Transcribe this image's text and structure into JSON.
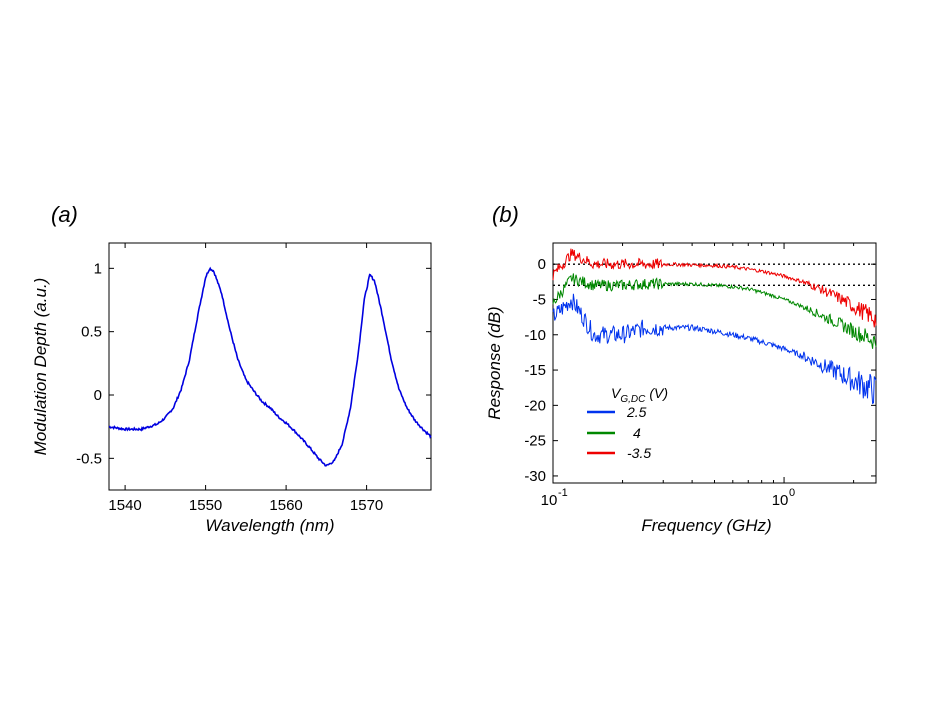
{
  "chart_data": [
    {
      "panel_label": "(a)",
      "type": "line",
      "xlabel": "Wavelength (nm)",
      "ylabel": "Modulation Depth (a.u.)",
      "xlim": [
        1538,
        1578
      ],
      "ylim": [
        -0.75,
        1.2
      ],
      "xticks": [
        1540,
        1550,
        1560,
        1570
      ],
      "yticks": [
        -0.5,
        0,
        0.5,
        1
      ],
      "ytick_labels": [
        "-0.5",
        "0",
        "0.5",
        "1"
      ],
      "grid": false,
      "colors": {
        "line": "#0000e0"
      },
      "series": [
        {
          "x": [
            1538,
            1540,
            1542,
            1544,
            1545,
            1546,
            1547,
            1548,
            1549,
            1550,
            1550.5,
            1551,
            1552,
            1553,
            1554,
            1555,
            1556,
            1557,
            1558,
            1559,
            1560,
            1561,
            1562,
            1563,
            1564,
            1565,
            1566,
            1567,
            1568,
            1569,
            1569.7,
            1570.4,
            1571,
            1572,
            1573,
            1574,
            1575,
            1576,
            1577,
            1578
          ],
          "y": [
            -0.25,
            -0.27,
            -0.27,
            -0.23,
            -0.18,
            -0.1,
            0.05,
            0.28,
            0.62,
            0.93,
            1.0,
            0.98,
            0.8,
            0.52,
            0.28,
            0.12,
            0.03,
            -0.05,
            -0.1,
            -0.17,
            -0.22,
            -0.28,
            -0.35,
            -0.42,
            -0.5,
            -0.56,
            -0.52,
            -0.38,
            -0.1,
            0.35,
            0.75,
            0.95,
            0.9,
            0.62,
            0.3,
            0.05,
            -0.1,
            -0.2,
            -0.27,
            -0.33
          ]
        }
      ]
    },
    {
      "panel_label": "(b)",
      "type": "line",
      "xlabel": "Frequency (GHz)",
      "ylabel": "Response (dB)",
      "xscale": "log",
      "xlim": [
        0.1,
        2.5
      ],
      "ylim": [
        -31,
        3
      ],
      "xticks": [
        0.1,
        1.0
      ],
      "xtick_labels": [
        "10",
        "10"
      ],
      "xtick_superscripts": [
        "-1",
        "0"
      ],
      "yticks": [
        0,
        -5,
        -10,
        -15,
        -20,
        -25,
        -30
      ],
      "ytick_labels": [
        "0",
        "-5",
        "-10",
        "-15",
        "-20",
        "-25",
        "-30"
      ],
      "grid": false,
      "reference_lines": [
        0,
        -3
      ],
      "legend": {
        "title": "V",
        "title_subscript": "G,DC",
        "title_unit": "(V)",
        "placement": "lower-left"
      },
      "series": [
        {
          "name": "2.5",
          "color": "#0033ee",
          "x": [
            0.1,
            0.12,
            0.15,
            0.18,
            0.2,
            0.25,
            0.3,
            0.4,
            0.5,
            0.6,
            0.7,
            0.8,
            1.0,
            1.2,
            1.5,
            2.0,
            2.5
          ],
          "y": [
            -7.5,
            -5,
            -10,
            -10,
            -10,
            -9,
            -9,
            -9,
            -9.5,
            -10,
            -10.5,
            -11,
            -12,
            -13,
            -14.5,
            -16.5,
            -18
          ]
        },
        {
          "name": "4",
          "color": "#008800",
          "x": [
            0.1,
            0.12,
            0.15,
            0.18,
            0.2,
            0.25,
            0.3,
            0.4,
            0.5,
            0.6,
            0.7,
            0.8,
            1.0,
            1.2,
            1.5,
            2.0,
            2.5
          ],
          "y": [
            -5.5,
            -2,
            -3,
            -3,
            -3,
            -2.8,
            -2.8,
            -2.8,
            -3,
            -3.2,
            -3.5,
            -4,
            -5,
            -6,
            -7.5,
            -9.5,
            -11
          ]
        },
        {
          "name": "-3.5",
          "color": "#ee0000",
          "x": [
            0.1,
            0.12,
            0.15,
            0.18,
            0.2,
            0.25,
            0.3,
            0.4,
            0.5,
            0.6,
            0.7,
            0.8,
            1.0,
            1.2,
            1.5,
            2.0,
            2.5
          ],
          "y": [
            -1.5,
            1.5,
            0,
            0,
            0,
            0,
            0,
            -0.1,
            -0.2,
            -0.4,
            -0.7,
            -1,
            -1.7,
            -2.5,
            -3.8,
            -6,
            -7.8
          ]
        }
      ]
    }
  ]
}
